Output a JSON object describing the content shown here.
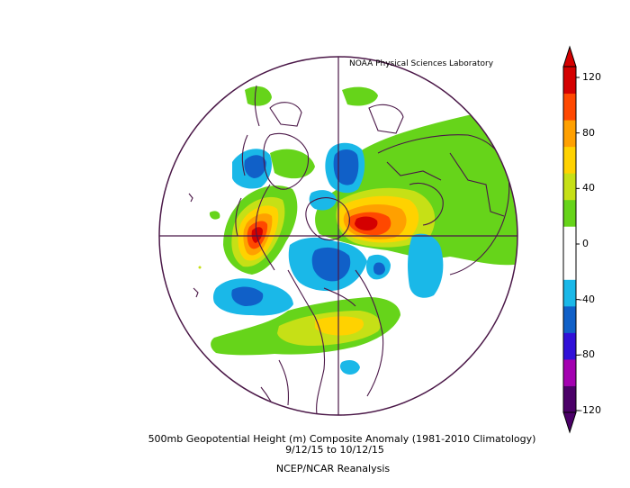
{
  "credit": "NOAA Physical Sciences Laboratory",
  "caption": {
    "line1": "500mb Geopotential Height (m) Composite Anomaly (1981-2010 Climatology)",
    "line2": "9/12/15   to 10/12/15",
    "line3": "NCEP/NCAR Reanalysis"
  },
  "colorbar": {
    "labels": [
      "120",
      "80",
      "40",
      "0",
      "-40",
      "-80",
      "-120"
    ],
    "colors": [
      "#4b0068",
      "#a300b0",
      "#3010d8",
      "#1060c8",
      "#1ab8e8",
      "#ffffff",
      "#ffffff",
      "#66d41a",
      "#c6e016",
      "#ffd200",
      "#ffa000",
      "#ff4800",
      "#d40000"
    ]
  },
  "map": {
    "projection": "north-polar-stereographic",
    "variable": "500mb geopotential height anomaly",
    "units": "m",
    "colors": {
      "frame": "#4a1747",
      "coast": "#4a1747",
      "pos40": "#66d41a",
      "pos60": "#c6e016",
      "pos80": "#ffd200",
      "pos100": "#ffa000",
      "pos120": "#ff4800",
      "pos140": "#d40000",
      "neg40": "#1ab8e8",
      "neg60": "#1060c8",
      "neg80": "#3010d8"
    }
  }
}
